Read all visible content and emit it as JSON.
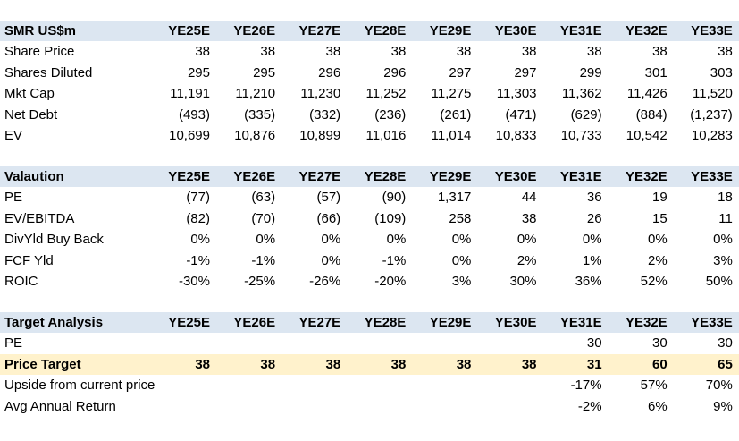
{
  "sections": [
    {
      "header": [
        "SMR US$m",
        "YE25E",
        "YE26E",
        "YE27E",
        "YE28E",
        "YE29E",
        "YE30E",
        "YE31E",
        "YE32E",
        "YE33E"
      ],
      "rows": [
        [
          "Share Price",
          "38",
          "38",
          "38",
          "38",
          "38",
          "38",
          "38",
          "38",
          "38"
        ],
        [
          "Shares Diluted",
          "295",
          "295",
          "296",
          "296",
          "297",
          "297",
          "299",
          "301",
          "303"
        ],
        [
          "Mkt Cap",
          "11,191",
          "11,210",
          "11,230",
          "11,252",
          "11,275",
          "11,303",
          "11,362",
          "11,426",
          "11,520"
        ],
        [
          "Net Debt",
          "(493)",
          "(335)",
          "(332)",
          "(236)",
          "(261)",
          "(471)",
          "(629)",
          "(884)",
          "(1,237)"
        ],
        [
          "EV",
          "10,699",
          "10,876",
          "10,899",
          "11,016",
          "11,014",
          "10,833",
          "10,733",
          "10,542",
          "10,283"
        ]
      ]
    },
    {
      "header": [
        "Valaution",
        "YE25E",
        "YE26E",
        "YE27E",
        "YE28E",
        "YE29E",
        "YE30E",
        "YE31E",
        "YE32E",
        "YE33E"
      ],
      "rows": [
        [
          "PE",
          "(77)",
          "(63)",
          "(57)",
          "(90)",
          "1,317",
          "44",
          "36",
          "19",
          "18"
        ],
        [
          "EV/EBITDA",
          "(82)",
          "(70)",
          "(66)",
          "(109)",
          "258",
          "38",
          "26",
          "15",
          "11"
        ],
        [
          "DivYld Buy Back",
          "0%",
          "0%",
          "0%",
          "0%",
          "0%",
          "0%",
          "0%",
          "0%",
          "0%"
        ],
        [
          "FCF Yld",
          "-1%",
          "-1%",
          "0%",
          "-1%",
          "0%",
          "2%",
          "1%",
          "2%",
          "3%"
        ],
        [
          "ROIC",
          "-30%",
          "-25%",
          "-26%",
          "-20%",
          "3%",
          "30%",
          "36%",
          "52%",
          "50%"
        ]
      ]
    },
    {
      "header": [
        "Target Analysis",
        "YE25E",
        "YE26E",
        "YE27E",
        "YE28E",
        "YE29E",
        "YE30E",
        "YE31E",
        "YE32E",
        "YE33E"
      ],
      "rows": [
        [
          "PE",
          null,
          null,
          null,
          null,
          null,
          null,
          "30",
          "30",
          "30"
        ],
        [
          "Price Target",
          "38",
          "38",
          "38",
          "38",
          "38",
          "38",
          "31",
          "60",
          "65"
        ],
        [
          "Upside from current price",
          null,
          null,
          null,
          null,
          null,
          null,
          "-17%",
          "57%",
          "70%"
        ],
        [
          "Avg Annual Return",
          null,
          null,
          null,
          null,
          null,
          null,
          "-2%",
          "6%",
          "9%"
        ]
      ]
    }
  ]
}
